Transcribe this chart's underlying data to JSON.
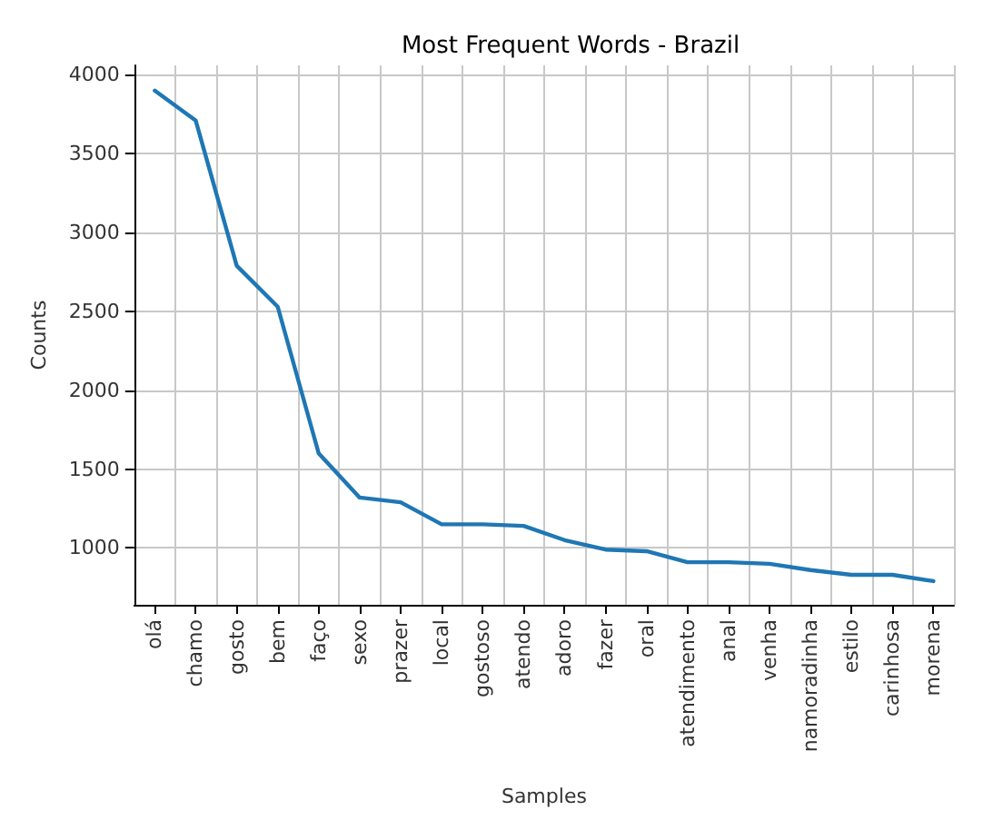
{
  "chart_data": {
    "type": "line",
    "title": "Most Frequent Words - Brazil",
    "xlabel": "Samples",
    "ylabel": "Counts",
    "categories": [
      "olá",
      "chamo",
      "gosto",
      "bem",
      "faço",
      "sexo",
      "prazer",
      "local",
      "gostoso",
      "atendo",
      "adoro",
      "fazer",
      "oral",
      "atendimento",
      "anal",
      "venha",
      "namoradinha",
      "estilo",
      "carinhosa",
      "morena"
    ],
    "series": [
      {
        "color": "#1f77b4",
        "values": [
          3900,
          3710,
          2790,
          2530,
          1600,
          1320,
          1290,
          1150,
          1150,
          1140,
          1050,
          990,
          980,
          910,
          910,
          900,
          860,
          830,
          830,
          790
        ]
      }
    ],
    "ylim": [
      640,
      4060
    ],
    "yticks": [
      1000,
      1500,
      2000,
      2500,
      3000,
      3500,
      4000
    ],
    "grid": true,
    "marker": "none",
    "line_style": "solid"
  }
}
